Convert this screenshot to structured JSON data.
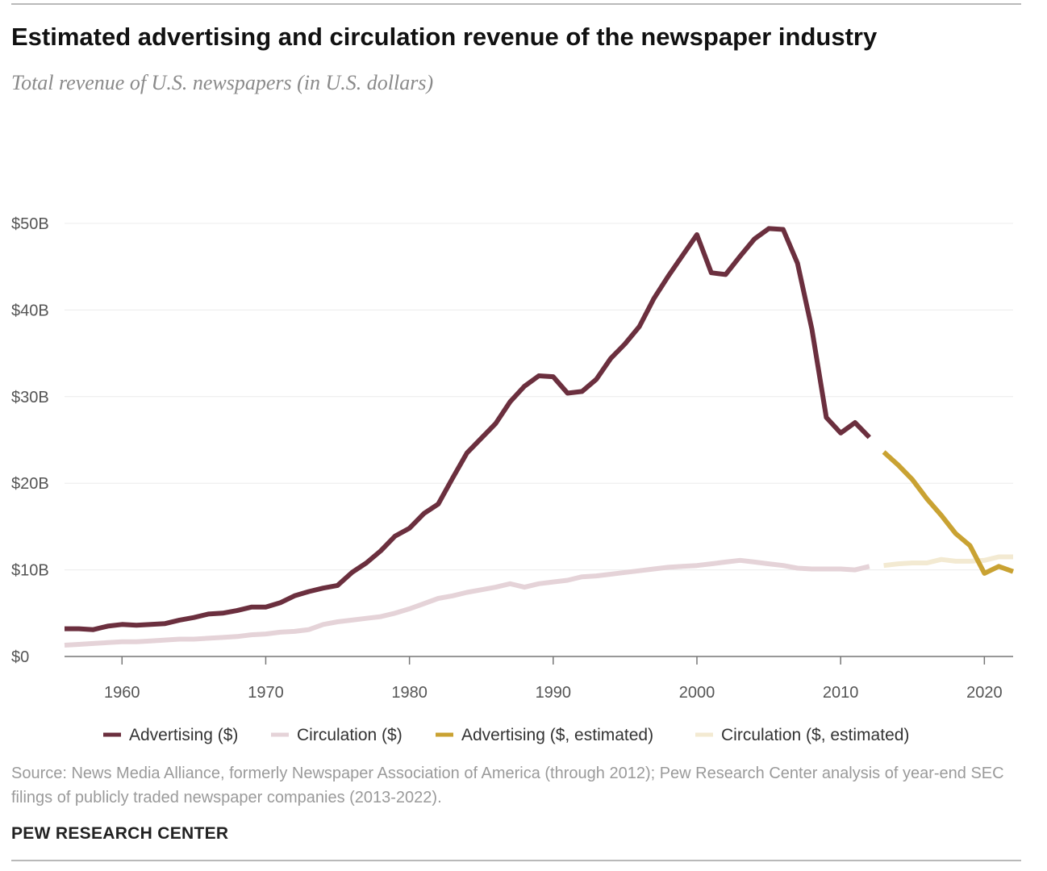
{
  "title": "Estimated advertising and circulation revenue of the newspaper industry",
  "subtitle": "Total revenue of U.S. newspapers (in U.S. dollars)",
  "source": "Source: News Media Alliance, formerly Newspaper Association of America (through 2012); Pew Research Center analysis of year-end SEC filings of publicly traded newspaper companies (2013-2022).",
  "footer": "PEW RESEARCH CENTER",
  "chart_data": {
    "type": "line",
    "x_ticks": [
      1960,
      1970,
      1980,
      1990,
      2000,
      2010,
      2020
    ],
    "x_tick_labels": [
      "1960",
      "1970",
      "1980",
      "1990",
      "2000",
      "2010",
      "2020"
    ],
    "y_ticks": [
      0,
      10,
      20,
      30,
      40,
      50
    ],
    "y_tick_labels": [
      "$0",
      "$10B",
      "$20B",
      "$30B",
      "$40B",
      "$50B"
    ],
    "xlim": [
      1956,
      2022
    ],
    "ylim": [
      0,
      50
    ],
    "grid": "horizontal",
    "legend_position": "bottom",
    "series": [
      {
        "name": "Advertising ($)",
        "color": "#6b2f3e",
        "x": [
          1956,
          1957,
          1958,
          1959,
          1960,
          1961,
          1962,
          1963,
          1964,
          1965,
          1966,
          1967,
          1968,
          1969,
          1970,
          1971,
          1972,
          1973,
          1974,
          1975,
          1976,
          1977,
          1978,
          1979,
          1980,
          1981,
          1982,
          1983,
          1984,
          1985,
          1986,
          1987,
          1988,
          1989,
          1990,
          1991,
          1992,
          1993,
          1994,
          1995,
          1996,
          1997,
          1998,
          1999,
          2000,
          2001,
          2002,
          2003,
          2004,
          2005,
          2006,
          2007,
          2008,
          2009,
          2010,
          2011,
          2012
        ],
        "values": [
          3.2,
          3.2,
          3.1,
          3.5,
          3.7,
          3.6,
          3.7,
          3.8,
          4.2,
          4.5,
          4.9,
          5.0,
          5.3,
          5.7,
          5.7,
          6.2,
          7.0,
          7.5,
          7.9,
          8.2,
          9.7,
          10.8,
          12.2,
          13.9,
          14.8,
          16.5,
          17.6,
          20.6,
          23.5,
          25.2,
          26.9,
          29.4,
          31.2,
          32.4,
          32.3,
          30.4,
          30.6,
          32.0,
          34.4,
          36.1,
          38.1,
          41.3,
          43.9,
          46.3,
          48.7,
          44.3,
          44.1,
          46.2,
          48.2,
          49.4,
          49.3,
          45.4,
          37.8,
          27.6,
          25.8,
          27.0,
          25.3
        ]
      },
      {
        "name": "Circulation ($)",
        "color": "#e5d3d8",
        "x": [
          1956,
          1957,
          1958,
          1959,
          1960,
          1961,
          1962,
          1963,
          1964,
          1965,
          1966,
          1967,
          1968,
          1969,
          1970,
          1971,
          1972,
          1973,
          1974,
          1975,
          1976,
          1977,
          1978,
          1979,
          1980,
          1981,
          1982,
          1983,
          1984,
          1985,
          1986,
          1987,
          1988,
          1989,
          1990,
          1991,
          1992,
          1993,
          1994,
          1995,
          1996,
          1997,
          1998,
          1999,
          2000,
          2001,
          2002,
          2003,
          2004,
          2005,
          2006,
          2007,
          2008,
          2009,
          2010,
          2011,
          2012
        ],
        "values": [
          1.3,
          1.4,
          1.5,
          1.6,
          1.7,
          1.7,
          1.8,
          1.9,
          2.0,
          2.0,
          2.1,
          2.2,
          2.3,
          2.5,
          2.6,
          2.8,
          2.9,
          3.1,
          3.7,
          4.0,
          4.2,
          4.4,
          4.6,
          5.0,
          5.5,
          6.1,
          6.7,
          7.0,
          7.4,
          7.7,
          8.0,
          8.4,
          8.0,
          8.4,
          8.6,
          8.8,
          9.2,
          9.3,
          9.5,
          9.7,
          9.9,
          10.1,
          10.3,
          10.4,
          10.5,
          10.7,
          10.9,
          11.1,
          10.9,
          10.7,
          10.5,
          10.2,
          10.1,
          10.1,
          10.1,
          10.0,
          10.4
        ]
      },
      {
        "name": "Advertising ($, estimated)",
        "color": "#c9a232",
        "x": [
          2013,
          2014,
          2015,
          2016,
          2017,
          2018,
          2019,
          2020,
          2021,
          2022
        ],
        "values": [
          23.6,
          22.1,
          20.4,
          18.2,
          16.3,
          14.2,
          12.8,
          9.6,
          10.4,
          9.8
        ]
      },
      {
        "name": "Circulation ($, estimated)",
        "color": "#f3ead2",
        "x": [
          2013,
          2014,
          2015,
          2016,
          2017,
          2018,
          2019,
          2020,
          2021,
          2022
        ],
        "values": [
          10.5,
          10.7,
          10.8,
          10.8,
          11.2,
          11.0,
          11.0,
          11.1,
          11.5,
          11.5
        ]
      }
    ]
  }
}
